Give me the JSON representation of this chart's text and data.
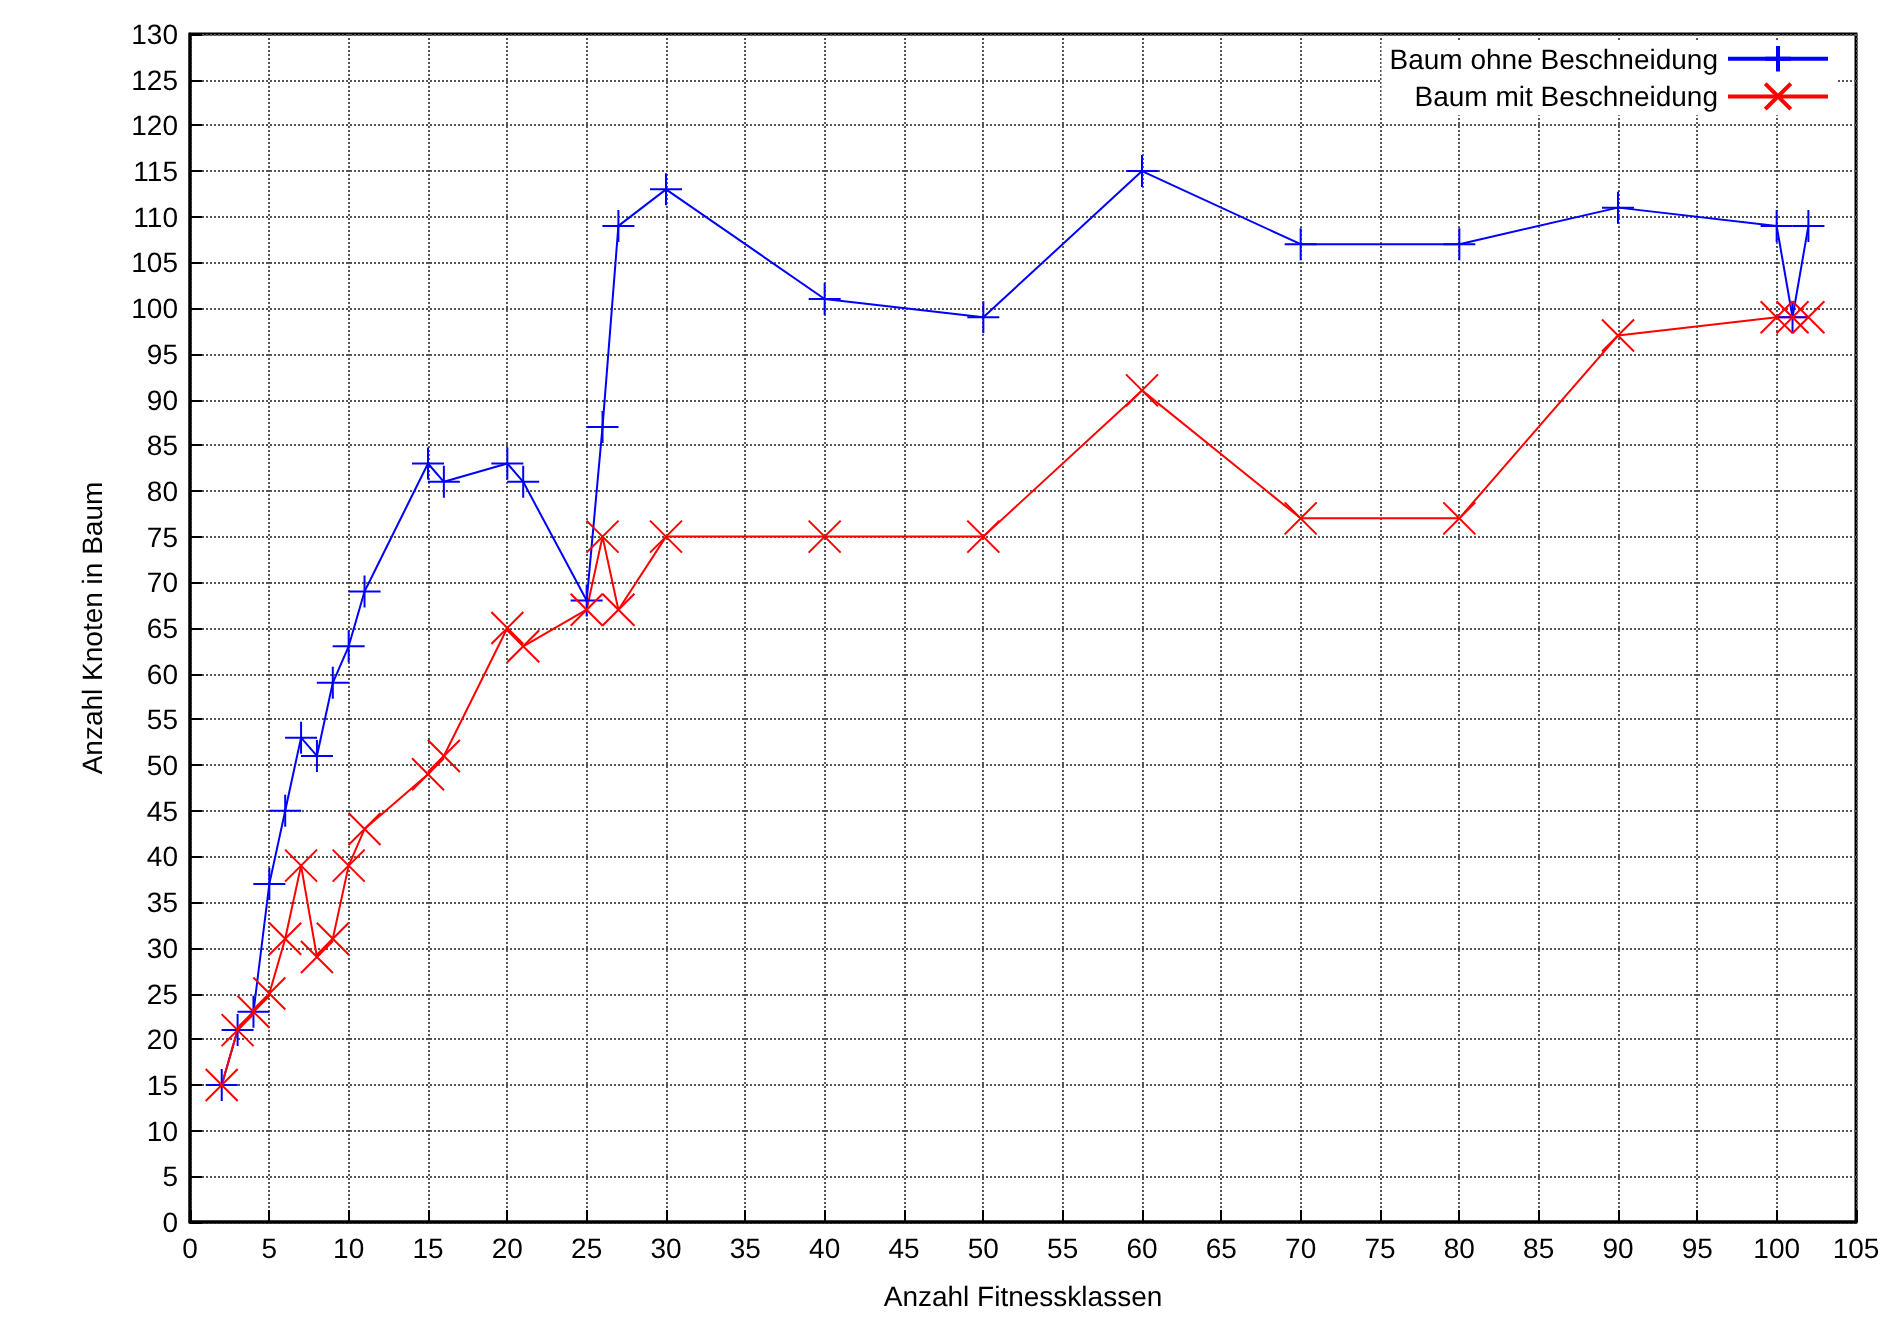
{
  "chart_data": {
    "type": "line",
    "xlabel": "Anzahl Fitnessklassen",
    "ylabel": "Anzahl Knoten in Baum",
    "xlim": [
      0,
      105
    ],
    "xticks": [
      0,
      5,
      10,
      15,
      20,
      25,
      30,
      35,
      40,
      45,
      50,
      55,
      60,
      65,
      70,
      75,
      80,
      85,
      90,
      95,
      100,
      105
    ],
    "ylim": [
      0,
      130
    ],
    "yticks": [
      0,
      5,
      10,
      15,
      20,
      25,
      30,
      35,
      40,
      45,
      50,
      55,
      60,
      65,
      70,
      75,
      80,
      85,
      90,
      95,
      100,
      105,
      110,
      115,
      120,
      125,
      130
    ],
    "grid": true,
    "legend": "top right",
    "line_style": "solid",
    "series": [
      {
        "name": "Baum ohne Beschneidung",
        "color": "#0000ff",
        "marker": "plus",
        "x": [
          2,
          3,
          4,
          5,
          6,
          7,
          8,
          9,
          10,
          11,
          15,
          16,
          20,
          21,
          25,
          26,
          27,
          30,
          40,
          50,
          60,
          70,
          80,
          90,
          100,
          101,
          102
        ],
        "values": [
          15,
          21,
          23,
          37,
          45,
          53,
          51,
          59,
          63,
          69,
          83,
          81,
          83,
          81,
          68,
          87,
          109,
          113,
          101,
          99,
          115,
          107,
          107,
          111,
          109,
          99,
          109
        ]
      },
      {
        "name": "Baum mit Beschneidung",
        "color": "#ff0000",
        "marker": "cross",
        "x": [
          2,
          3,
          4,
          5,
          6,
          7,
          8,
          9,
          10,
          11,
          15,
          16,
          20,
          21,
          25,
          26,
          27,
          30,
          40,
          50,
          60,
          70,
          80,
          90,
          100,
          101,
          102
        ],
        "values": [
          15,
          21,
          23,
          25,
          31,
          39,
          29,
          31,
          39,
          43,
          49,
          51,
          65,
          63,
          67,
          75,
          67,
          75,
          75,
          75,
          91,
          77,
          77,
          97,
          99,
          99,
          99
        ]
      }
    ]
  }
}
